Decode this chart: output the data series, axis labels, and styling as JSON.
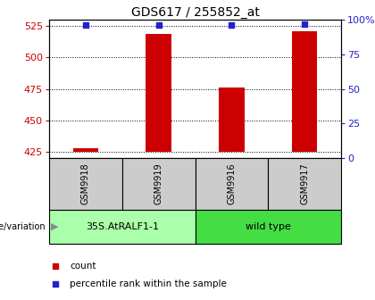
{
  "title": "GDS617 / 255852_at",
  "samples": [
    "GSM9918",
    "GSM9919",
    "GSM9916",
    "GSM9917"
  ],
  "count_values": [
    428,
    519,
    476,
    521
  ],
  "percentile_values_pct": [
    96,
    96,
    96,
    97
  ],
  "ylim_left": [
    420,
    530
  ],
  "yticks_left": [
    425,
    450,
    475,
    500,
    525
  ],
  "ylim_right": [
    0,
    100
  ],
  "yticks_right": [
    0,
    25,
    50,
    75,
    100
  ],
  "bar_color": "#cc0000",
  "dot_color": "#2222cc",
  "bar_baseline": 425,
  "groups": [
    {
      "label": "35S.AtRALF1-1",
      "sample_indices": [
        0,
        1
      ],
      "color": "#aaffaa"
    },
    {
      "label": "wild type",
      "sample_indices": [
        2,
        3
      ],
      "color": "#44dd44"
    }
  ],
  "xlabel_label": "genotype/variation",
  "legend_count_label": "count",
  "legend_percentile_label": "percentile rank within the sample",
  "title_fontsize": 10,
  "tick_fontsize": 8,
  "axis_color_left": "#cc0000",
  "axis_color_right": "#2222cc",
  "sample_area_color": "#cccccc",
  "sample_border_color": "#000000",
  "bar_width": 0.35
}
